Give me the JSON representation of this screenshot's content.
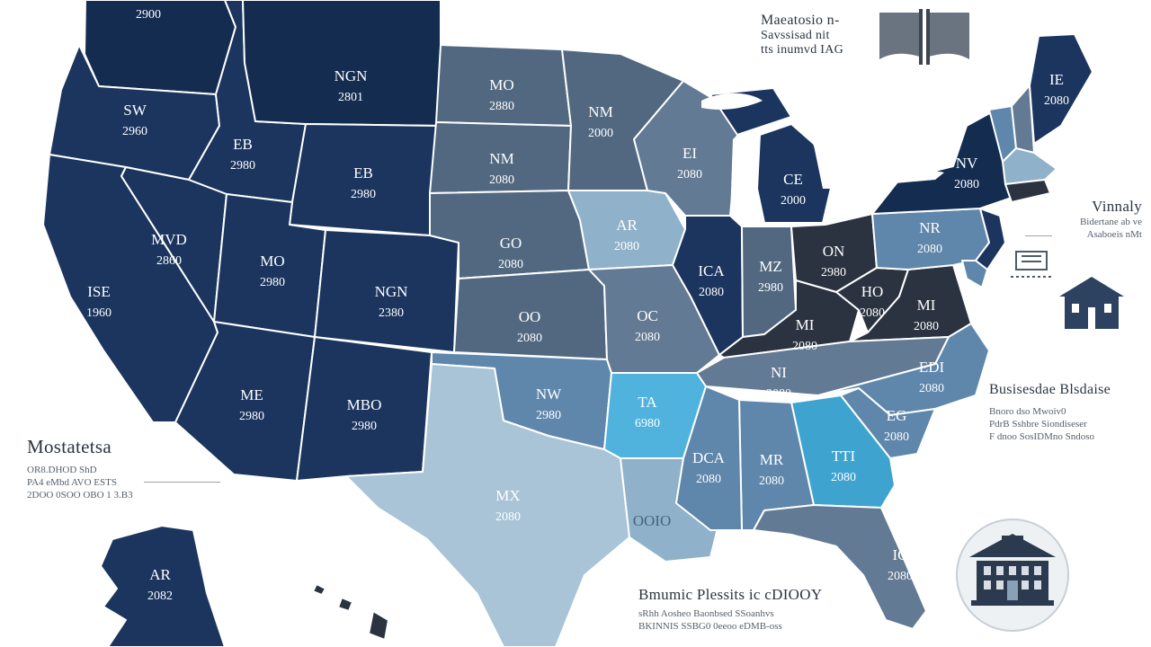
{
  "map": {
    "colors": {
      "navy": "#1b355e",
      "dark_navy": "#142c50",
      "slate": "#526880",
      "steel": "#627a93",
      "mid_blue": "#5f86ab",
      "light_steel": "#8fb1c9",
      "pale_blue": "#a9c4d6",
      "cyan": "#3fa3cf",
      "sky": "#4fb3dd",
      "charcoal": "#2b3340",
      "ocean_outline": "#ffffff"
    },
    "states": [
      {
        "id": "wa",
        "color": "dark_navy",
        "l1": "",
        "l2": "2900"
      },
      {
        "id": "or",
        "color": "navy",
        "l1": "SW",
        "l2": "2960"
      },
      {
        "id": "ca",
        "color": "navy",
        "l1": "ISE",
        "l2": "1960"
      },
      {
        "id": "nv",
        "color": "navy",
        "l1": "MVD",
        "l2": "2860"
      },
      {
        "id": "id",
        "color": "navy",
        "l1": "EB",
        "l2": "2980"
      },
      {
        "id": "mt",
        "color": "dark_navy",
        "l1": "NGN",
        "l2": "2801"
      },
      {
        "id": "wy",
        "color": "navy",
        "l1": "EB",
        "l2": "2980"
      },
      {
        "id": "ut",
        "color": "navy",
        "l1": "MO",
        "l2": "2980"
      },
      {
        "id": "co",
        "color": "navy",
        "l1": "NGN",
        "l2": "2380"
      },
      {
        "id": "az",
        "color": "navy",
        "l1": "ME",
        "l2": "2980"
      },
      {
        "id": "nm",
        "color": "navy",
        "l1": "MBO",
        "l2": "2980"
      },
      {
        "id": "nd",
        "color": "slate",
        "l1": "MO",
        "l2": "2880"
      },
      {
        "id": "sd",
        "color": "slate",
        "l1": "NM",
        "l2": "2080"
      },
      {
        "id": "ne",
        "color": "slate",
        "l1": "GO",
        "l2": "2080"
      },
      {
        "id": "ks",
        "color": "slate",
        "l1": "OO",
        "l2": "2080"
      },
      {
        "id": "ok",
        "color": "mid_blue",
        "l1": "NW",
        "l2": "2980"
      },
      {
        "id": "tx",
        "color": "pale_blue",
        "l1": "MX",
        "l2": "2080"
      },
      {
        "id": "mn",
        "color": "slate",
        "l1": "NM",
        "l2": "2000"
      },
      {
        "id": "ia",
        "color": "light_steel",
        "l1": "AR",
        "l2": "2080"
      },
      {
        "id": "mo",
        "color": "steel",
        "l1": "OC",
        "l2": "2080"
      },
      {
        "id": "ar",
        "color": "sky",
        "l1": "TA",
        "l2": "6980"
      },
      {
        "id": "la",
        "color": "light_steel",
        "l1": "",
        "l2": ""
      },
      {
        "id": "wi",
        "color": "steel",
        "l1": "EI",
        "l2": "2080"
      },
      {
        "id": "il",
        "color": "navy",
        "l1": "ICA",
        "l2": "2080"
      },
      {
        "id": "in",
        "color": "slate",
        "l1": "MZ",
        "l2": "2980"
      },
      {
        "id": "mi",
        "color": "navy",
        "l1": "CE",
        "l2": "2000"
      },
      {
        "id": "oh",
        "color": "charcoal",
        "l1": "ON",
        "l2": "2980"
      },
      {
        "id": "ky",
        "color": "charcoal",
        "l1": "MI",
        "l2": "2080"
      },
      {
        "id": "tn",
        "color": "steel",
        "l1": "NI",
        "l2": "2080"
      },
      {
        "id": "ms",
        "color": "mid_blue",
        "l1": "DCA",
        "l2": "2080"
      },
      {
        "id": "al",
        "color": "mid_blue",
        "l1": "MR",
        "l2": "2080"
      },
      {
        "id": "ga",
        "color": "cyan",
        "l1": "TTI",
        "l2": "2080"
      },
      {
        "id": "fl",
        "color": "steel",
        "l1": "IC",
        "l2": "2080"
      },
      {
        "id": "sc",
        "color": "mid_blue",
        "l1": "EG",
        "l2": "2080"
      },
      {
        "id": "nc",
        "color": "mid_blue",
        "l1": "EDI",
        "l2": "2080"
      },
      {
        "id": "va",
        "color": "charcoal",
        "l1": "MI",
        "l2": "2080"
      },
      {
        "id": "wv",
        "color": "charcoal",
        "l1": "HO",
        "l2": "2080"
      },
      {
        "id": "pa",
        "color": "mid_blue",
        "l1": "NR",
        "l2": "2080"
      },
      {
        "id": "ny",
        "color": "dark_navy",
        "l1": "NV",
        "l2": "2080"
      },
      {
        "id": "nj",
        "color": "navy",
        "l1": "",
        "l2": ""
      },
      {
        "id": "vt",
        "color": "mid_blue",
        "l1": "",
        "l2": ""
      },
      {
        "id": "nh",
        "color": "steel",
        "l1": "",
        "l2": ""
      },
      {
        "id": "me",
        "color": "navy",
        "l1": "IE",
        "l2": "2080"
      },
      {
        "id": "ma",
        "color": "light_steel",
        "l1": "",
        "l2": ""
      },
      {
        "id": "ct",
        "color": "charcoal",
        "l1": "",
        "l2": ""
      },
      {
        "id": "de",
        "color": "mid_blue",
        "l1": "",
        "l2": ""
      },
      {
        "id": "ak",
        "color": "navy",
        "l1": "AR",
        "l2": "2082"
      },
      {
        "id": "hi",
        "color": "charcoal",
        "l1": "",
        "l2": ""
      }
    ],
    "gulf_label": "OOIO"
  },
  "legend_left": {
    "title": "Mostatetsa",
    "lines": [
      "OR8.DHOD ShD",
      "PA4 eMbd AVO  ESTS",
      "2DOO 0SOO  OBO  1 3.B3"
    ]
  },
  "top_note": {
    "lines": [
      "Maeatosio n-",
      "Savssisad nit",
      "tts inumvd  IAG"
    ]
  },
  "right_note": {
    "title": "Vinnaly",
    "lines": [
      "Bidertane ab  ve",
      "Asaboeis nMt"
    ]
  },
  "mid_right_note": {
    "title": "Busisesdae Blsdaise",
    "lines": [
      "Bnoro dso  Mwoiv0",
      "PdrB Sshbre Siondiseser",
      "F dnoo SosIDMno Sndoso"
    ]
  },
  "bottom_note": {
    "title": "Bmumic Plessits ic cDIOOY",
    "lines": [
      "sRhh Aosheo  Baonbsed SSoanhvs",
      "BKINNIS SSBG0 0eeoo eDMB-oss"
    ]
  },
  "icons": [
    "book-icon",
    "network-icon",
    "schoolhouse-icon",
    "university-badge-icon"
  ]
}
